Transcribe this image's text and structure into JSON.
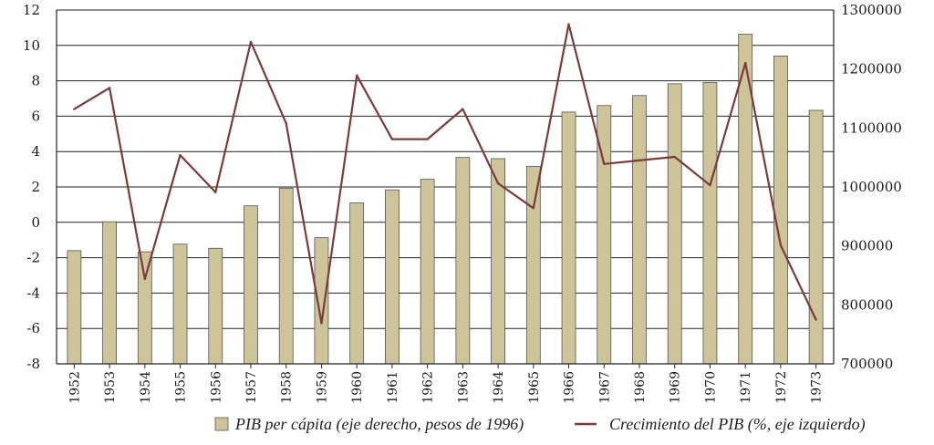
{
  "chart_data": {
    "type": "bar",
    "categories": [
      "1952",
      "1953",
      "1954",
      "1955",
      "1956",
      "1957",
      "1958",
      "1959",
      "1960",
      "1961",
      "1962",
      "1963",
      "1964",
      "1965",
      "1966",
      "1967",
      "1968",
      "1969",
      "1970",
      "1971",
      "1972",
      "1973"
    ],
    "series": [
      {
        "name": "PIB per cápita (eje derecho, pesos de 1996)",
        "type": "bar",
        "axis": "right",
        "color": "#cdc49a",
        "values": [
          892000,
          941000,
          890000,
          903000,
          896000,
          968000,
          998000,
          914000,
          973000,
          995000,
          1013000,
          1050000,
          1048000,
          1035000,
          1127000,
          1138000,
          1155000,
          1175000,
          1177000,
          1259000,
          1222000,
          1130000
        ]
      },
      {
        "name": "Crecimiento del PIB (%, eje izquierdo)",
        "type": "line",
        "axis": "left",
        "color": "#7a3b3b",
        "values": [
          6.4,
          7.6,
          -3.2,
          3.8,
          1.7,
          10.2,
          5.6,
          -5.7,
          8.3,
          4.7,
          4.7,
          6.4,
          2.2,
          0.8,
          11.2,
          3.3,
          3.5,
          3.7,
          2.1,
          9.0,
          -1.3,
          -5.5
        ]
      }
    ],
    "y_left": {
      "ylim": [
        -8,
        12
      ],
      "ticks": [
        -8,
        -6,
        -4,
        -2,
        0,
        2,
        4,
        6,
        8,
        10,
        12
      ]
    },
    "y_right": {
      "ylim": [
        700000,
        1300000
      ],
      "ticks": [
        700000,
        800000,
        900000,
        1000000,
        1100000,
        1200000,
        1300000
      ]
    },
    "grid": true,
    "legend": "bottom"
  }
}
